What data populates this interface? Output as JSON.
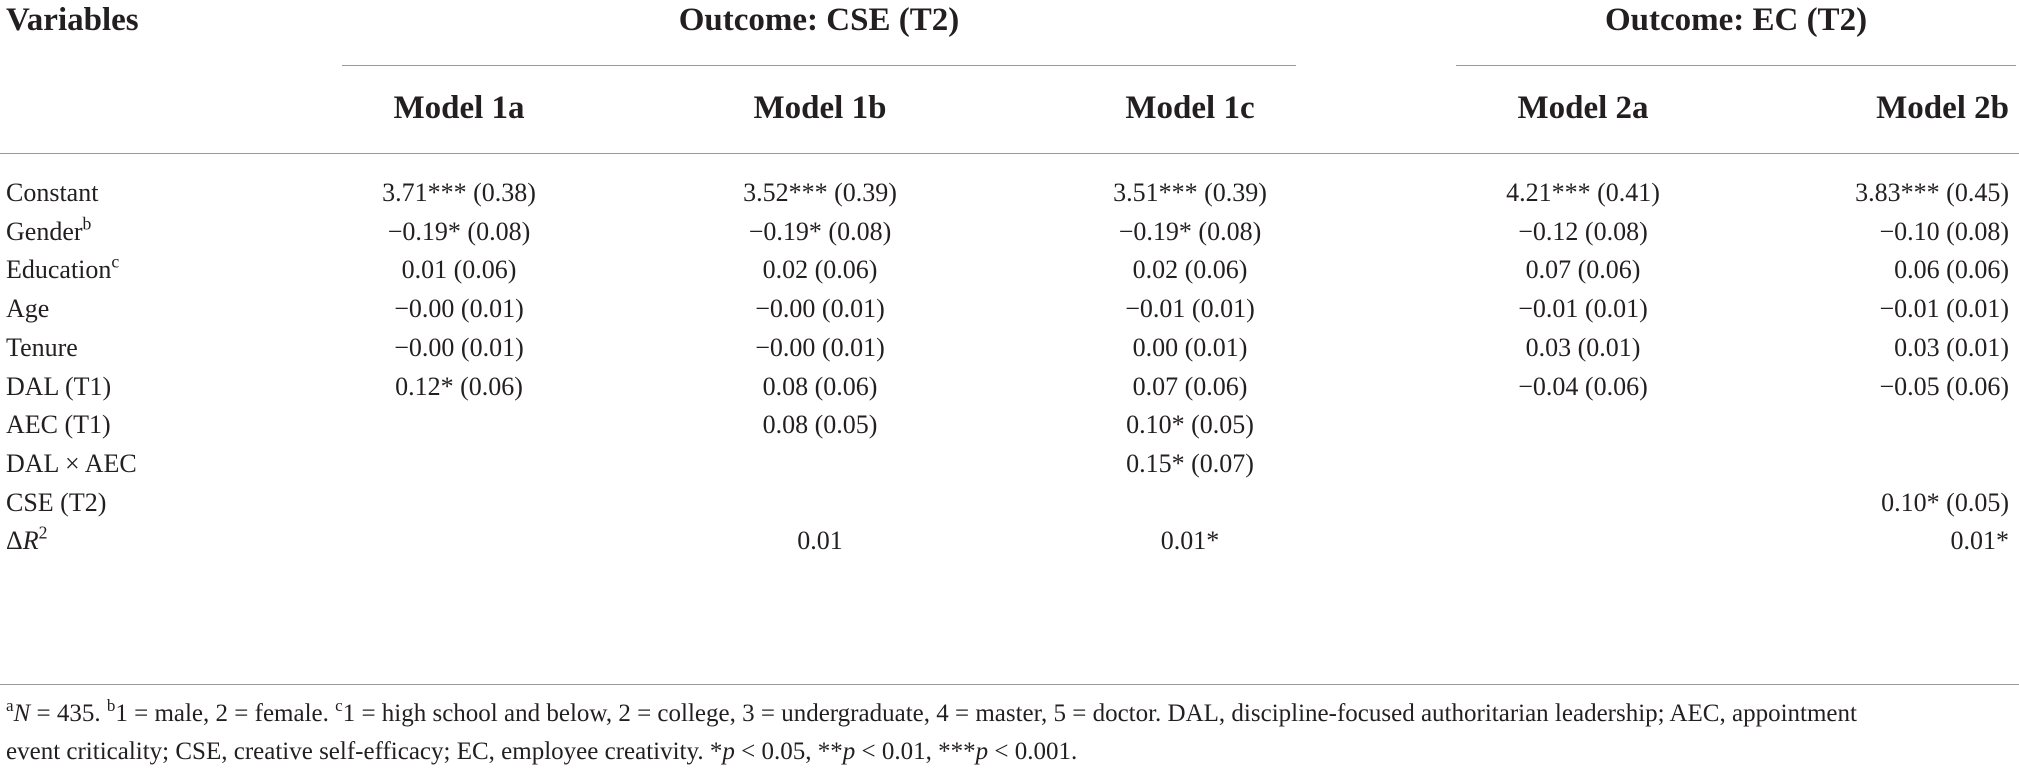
{
  "header": {
    "variables": "Variables",
    "group_cse": "Outcome: CSE (T2)",
    "group_ec": "Outcome: EC (T2)",
    "models": [
      "Model 1a",
      "Model 1b",
      "Model 1c",
      "Model 2a",
      "Model 2b"
    ]
  },
  "rows": [
    {
      "label": "Constant",
      "sup": "",
      "cells": [
        "3.71*** (0.38)",
        "3.52*** (0.39)",
        "3.51*** (0.39)",
        "4.21*** (0.41)",
        "3.83*** (0.45)"
      ]
    },
    {
      "label": "Gender",
      "sup": "b",
      "cells": [
        "−0.19* (0.08)",
        "−0.19* (0.08)",
        "−0.19* (0.08)",
        "−0.12 (0.08)",
        "−0.10 (0.08)"
      ]
    },
    {
      "label": "Education",
      "sup": "c",
      "cells": [
        "0.01 (0.06)",
        "0.02 (0.06)",
        "0.02 (0.06)",
        "0.07 (0.06)",
        "0.06 (0.06)"
      ]
    },
    {
      "label": "Age",
      "sup": "",
      "cells": [
        "−0.00 (0.01)",
        "−0.00 (0.01)",
        "−0.01 (0.01)",
        "−0.01 (0.01)",
        "−0.01 (0.01)"
      ]
    },
    {
      "label": "Tenure",
      "sup": "",
      "cells": [
        "−0.00 (0.01)",
        "−0.00 (0.01)",
        "0.00 (0.01)",
        "0.03 (0.01)",
        "0.03 (0.01)"
      ]
    },
    {
      "label": "DAL (T1)",
      "sup": "",
      "cells": [
        "0.12* (0.06)",
        "0.08 (0.06)",
        "0.07 (0.06)",
        "−0.04 (0.06)",
        "−0.05 (0.06)"
      ]
    },
    {
      "label": "AEC (T1)",
      "sup": "",
      "cells": [
        "",
        "0.08 (0.05)",
        "0.10* (0.05)",
        "",
        ""
      ]
    },
    {
      "label": "DAL × AEC",
      "sup": "",
      "cells": [
        "",
        "",
        "0.15* (0.07)",
        "",
        ""
      ]
    },
    {
      "label": "CSE (T2)",
      "sup": "",
      "cells": [
        "",
        "",
        "",
        "",
        "0.10* (0.05)"
      ]
    },
    {
      "label_delta": "Δ",
      "label_r": "R",
      "label_sup": "2",
      "cells": [
        "",
        "0.01",
        "0.01*",
        "",
        "0.01*"
      ]
    }
  ],
  "footnote": {
    "a_sup": "a",
    "a_text": "N",
    "a_value": " = 435. ",
    "b_sup": "b",
    "b_text": "1 = male, 2 = female. ",
    "c_sup": "c",
    "c_text": "1 = high school and below, 2 = college, 3 = undergraduate, 4 = master, 5 = doctor. DAL, discipline-focused authoritarian leadership; AEC, appointment",
    "line2_a": "event criticality; CSE, creative self-efficacy; EC, employee creativity. *",
    "p1": "p",
    "line2_b": " < 0.05, **",
    "p2": "p",
    "line2_c": " < 0.01, ***",
    "p3": "p",
    "line2_d": " < 0.001."
  }
}
